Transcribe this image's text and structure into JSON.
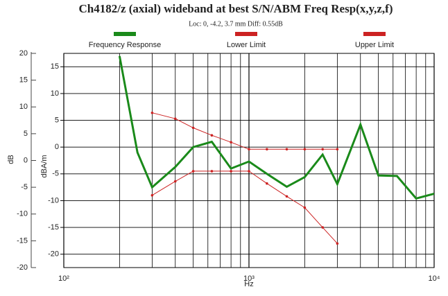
{
  "chart_data": {
    "type": "line",
    "title": "Ch4182/z (axial) wideband at best S/N/ABM Freq Resp(x,y,z,f)",
    "subtitle": "Loc: 0, -4.2, 3.7 mm Diff: 0.55dB",
    "xlabel": "Hz",
    "ylabel": "dBA/m",
    "y2label": "dB",
    "log_x": true,
    "grid": true,
    "legend": "top",
    "xlim": [
      100,
      10000
    ],
    "xticks": [
      {
        "value": 100,
        "label": "10²"
      },
      {
        "value": 1000,
        "label": "10³"
      },
      {
        "value": 10000,
        "label": "10⁴"
      }
    ],
    "xminor_ticks": [
      200,
      300,
      400,
      500,
      600,
      700,
      800,
      900,
      2000,
      3000,
      4000,
      5000,
      6000,
      7000,
      8000,
      9000
    ],
    "ylim": [
      -22.5,
      17.5
    ],
    "yticks": [
      15,
      10,
      5,
      0,
      -5,
      -10,
      -15,
      -20
    ],
    "y2lim": [
      -20,
      20
    ],
    "y2ticks": [
      20,
      15,
      10,
      5,
      0,
      -5,
      -10,
      -15,
      -20
    ],
    "series": [
      {
        "name": "Frequency Response",
        "color": "#1a8a1a",
        "x": [
          200,
          250,
          300,
          400,
          500,
          630,
          800,
          1000,
          1250,
          1600,
          2000,
          2500,
          3000,
          4000,
          5000,
          6300,
          8000,
          10000
        ],
        "values": [
          17,
          -1,
          -7.5,
          -3.7,
          0,
          1,
          -4,
          -2.7,
          -5,
          -7.4,
          -5.6,
          -1.4,
          -6.9,
          4.2,
          -5.3,
          -5.4,
          -9.6,
          -8.7
        ]
      },
      {
        "name": "Lower Limit",
        "color": "#cc2222",
        "x": [
          300,
          400,
          500,
          630,
          800,
          1000,
          1250,
          1600,
          2000,
          2500,
          3000
        ],
        "values": [
          -9,
          -6.4,
          -4.5,
          -4.5,
          -4.5,
          -4.5,
          -6.8,
          -9.2,
          -11.3,
          -15,
          -18
        ]
      },
      {
        "name": "Upper Limit",
        "color": "#cc2222",
        "x": [
          300,
          400,
          500,
          630,
          800,
          1000,
          1250,
          1600,
          2000,
          2500,
          3000
        ],
        "values": [
          6.4,
          5.3,
          3.6,
          2.2,
          0.9,
          -0.4,
          -0.4,
          -0.4,
          -0.4,
          -0.4,
          -0.4
        ]
      }
    ]
  }
}
